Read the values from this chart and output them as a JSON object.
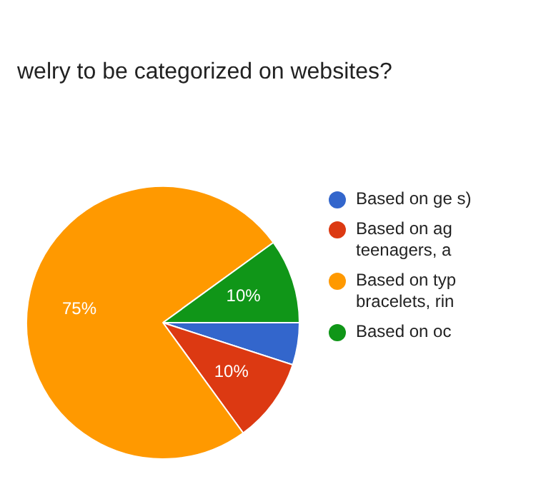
{
  "chart_data": {
    "type": "pie",
    "title": "welry to be categorized on websites?",
    "categories": [
      "Based on ge s)",
      "Based on ag teenagers, a",
      "Based on typ bracelets, rin",
      "Based on oc"
    ],
    "values": [
      5,
      10,
      75,
      10
    ],
    "colors": [
      "#3366cc",
      "#dc3912",
      "#ff9900",
      "#109618"
    ],
    "value_labels": [
      null,
      "10%",
      "75%",
      "10%"
    ],
    "legend": "right"
  }
}
